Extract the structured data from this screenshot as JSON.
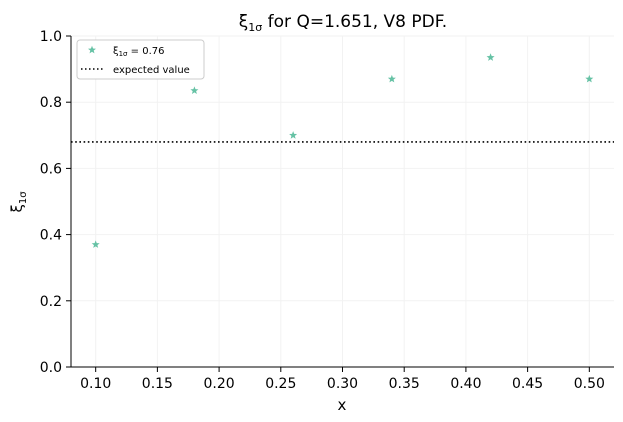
{
  "chart_data": {
    "type": "scatter",
    "title_main": "ξ",
    "title_sub": "1σ",
    "title_rest": " for Q=1.651, V8 PDF.",
    "xlabel": "x",
    "ylabel_main": "ξ",
    "ylabel_sub": "1σ",
    "xlim": [
      0.08,
      0.52
    ],
    "ylim": [
      0.0,
      1.0
    ],
    "xticks": [
      0.1,
      0.15,
      0.2,
      0.25,
      0.3,
      0.35,
      0.4,
      0.45,
      0.5
    ],
    "xtick_labels": [
      "0.10",
      "0.15",
      "0.20",
      "0.25",
      "0.30",
      "0.35",
      "0.40",
      "0.45",
      "0.50"
    ],
    "yticks": [
      0.0,
      0.2,
      0.4,
      0.6,
      0.8,
      1.0
    ],
    "ytick_labels": [
      "0.0",
      "0.2",
      "0.4",
      "0.6",
      "0.8",
      "1.0"
    ],
    "grid": true,
    "series": [
      {
        "name_main": "ξ",
        "name_sub": "1σ",
        "name_rest": " = 0.76",
        "marker": "star",
        "color": "#66c2a5",
        "x": [
          0.1,
          0.18,
          0.26,
          0.34,
          0.42,
          0.5
        ],
        "y": [
          0.37,
          0.835,
          0.7,
          0.87,
          0.935,
          0.87
        ]
      }
    ],
    "reference_line": {
      "label": "expected value",
      "y": 0.68,
      "style": "dotted",
      "color": "#000000"
    },
    "legend_position": "top-left"
  }
}
